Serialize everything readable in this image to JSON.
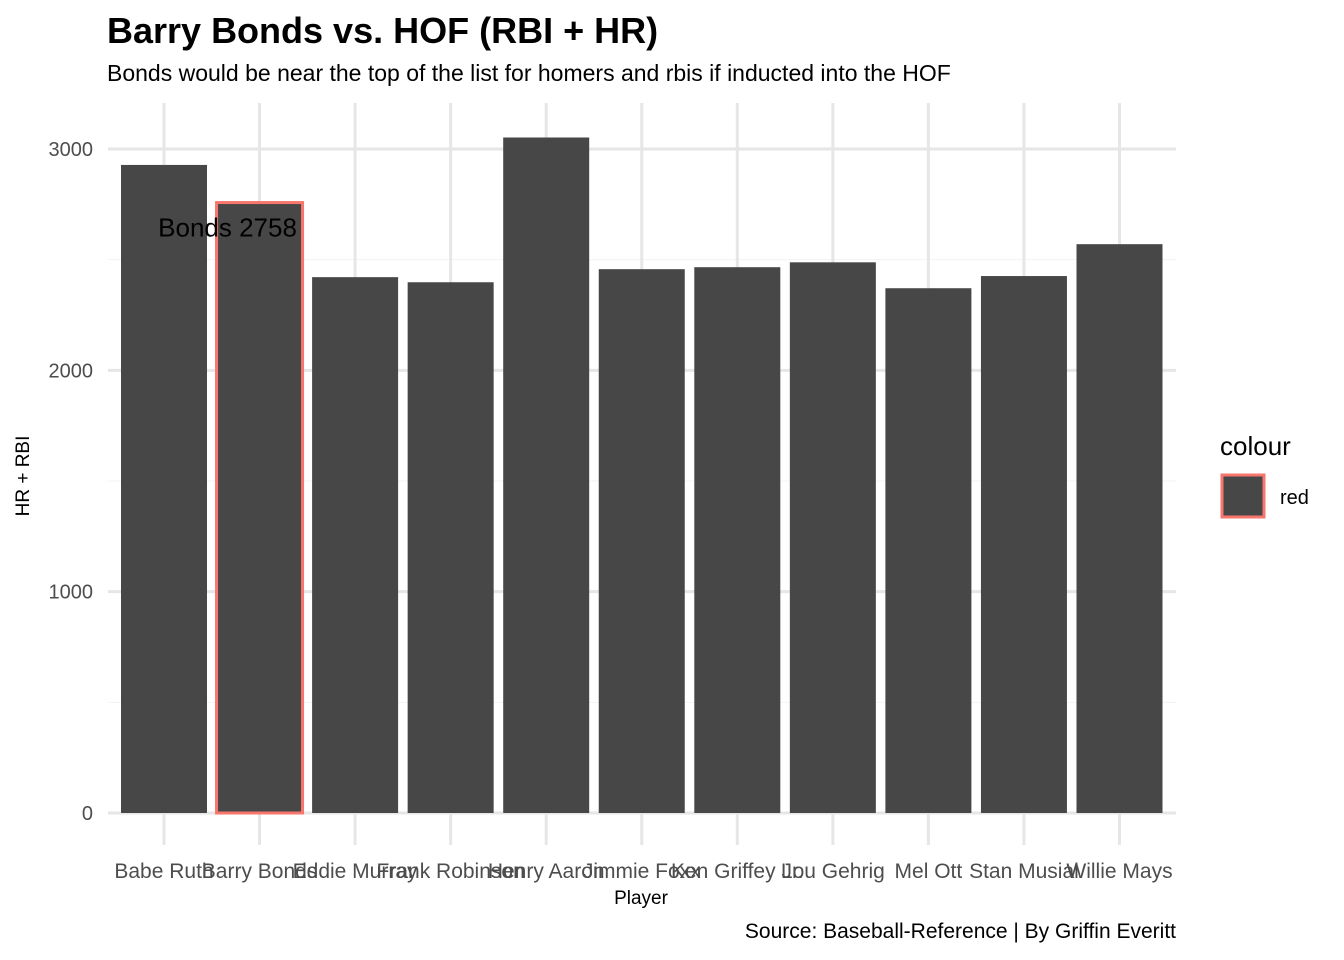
{
  "chart_data": {
    "type": "bar",
    "title": "Barry Bonds vs. HOF (RBI + HR)",
    "subtitle": "Bonds would be near the top of the list for homers and rbis if inducted into the HOF",
    "caption": "Source: Baseball-Reference | By Griffin Everitt",
    "xlabel": "Player",
    "ylabel": "HR + RBI",
    "categories": [
      "Babe Ruth",
      "Barry Bonds",
      "Eddie Murray",
      "Frank Robinson",
      "Henry Aaron",
      "Jimmie Foxx",
      "Ken Griffey Jr.",
      "Lou Gehrig",
      "Mel Ott",
      "Stan Musial",
      "Willie Mays"
    ],
    "values": [
      2928,
      2758,
      2421,
      2398,
      3052,
      2457,
      2466,
      2488,
      2371,
      2426,
      2570
    ],
    "highlight_index": 1,
    "ylim": [
      0,
      3000
    ],
    "yticks": [
      0,
      1000,
      2000,
      3000
    ],
    "grid": true,
    "bar_color": "#474747",
    "highlight_outline_color": "#f8766d",
    "annotation": {
      "text": "Bonds 2758",
      "category": "Barry Bonds",
      "y": 2650
    },
    "legend": {
      "title": "colour",
      "entries": [
        "red"
      ],
      "placement": "right"
    }
  }
}
